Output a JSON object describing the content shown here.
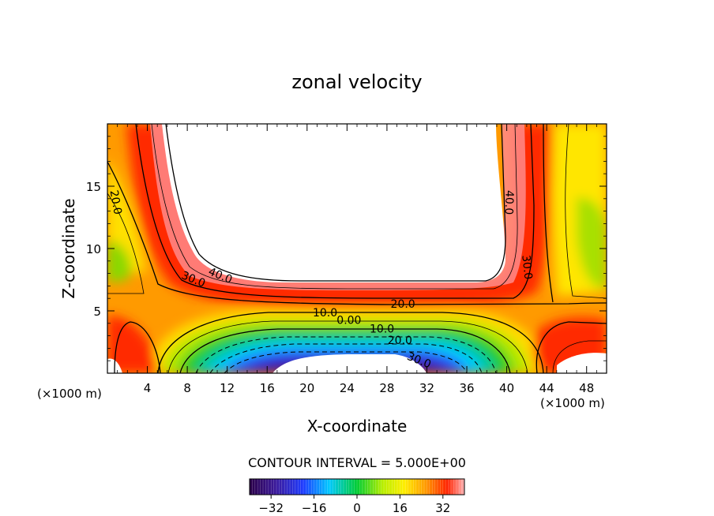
{
  "chart_data": {
    "type": "heatmap",
    "title": "zonal velocity",
    "xlabel": "X-coordinate",
    "ylabel": "Z-coordinate",
    "x_unit_label": "(×1000 m)",
    "z_unit_label": "(×1000 m)",
    "xlim": [
      0,
      50
    ],
    "ylim": [
      0,
      20
    ],
    "x_ticks": [
      4,
      8,
      12,
      16,
      20,
      24,
      28,
      32,
      36,
      40,
      44,
      48
    ],
    "y_ticks": [
      5,
      10,
      15
    ],
    "contour_interval_text": "CONTOUR INTERVAL = 5.000E+00",
    "contour_labels": [
      {
        "text": "20.0",
        "x": 0.8,
        "z": 13.7,
        "angle": 80
      },
      {
        "text": "40.0",
        "x": 11.3,
        "z": 7.8,
        "angle": 22
      },
      {
        "text": "30.0",
        "x": 8.6,
        "z": 7.5,
        "angle": 22
      },
      {
        "text": "40.0",
        "x": 40.2,
        "z": 13.7,
        "angle": 92
      },
      {
        "text": "30.0",
        "x": 42.0,
        "z": 8.5,
        "angle": 84
      },
      {
        "text": "20.0",
        "x": 29.6,
        "z": 5.5,
        "angle": 0
      },
      {
        "text": "10.0",
        "x": 21.8,
        "z": 4.8,
        "angle": 0
      },
      {
        "text": "0.00",
        "x": 24.2,
        "z": 4.2,
        "angle": 0
      },
      {
        "text": "10.0",
        "x": 27.5,
        "z": 3.5,
        "angle": 0
      },
      {
        "text": "20.0",
        "x": 29.3,
        "z": 2.6,
        "angle": 0
      },
      {
        "text": "30.0",
        "x": 31.2,
        "z": 1.0,
        "angle": 22
      }
    ],
    "colorbar": {
      "range": [
        -40,
        40
      ],
      "ticks": [
        -32,
        -16,
        0,
        16,
        32
      ],
      "tick_labels": [
        "−32",
        "−16",
        "0",
        "16",
        "32"
      ]
    },
    "masked_regions": [
      {
        "name": "upper-white-region",
        "value": "> 45"
      },
      {
        "name": "lower-white-region",
        "value": "< -35"
      }
    ]
  }
}
